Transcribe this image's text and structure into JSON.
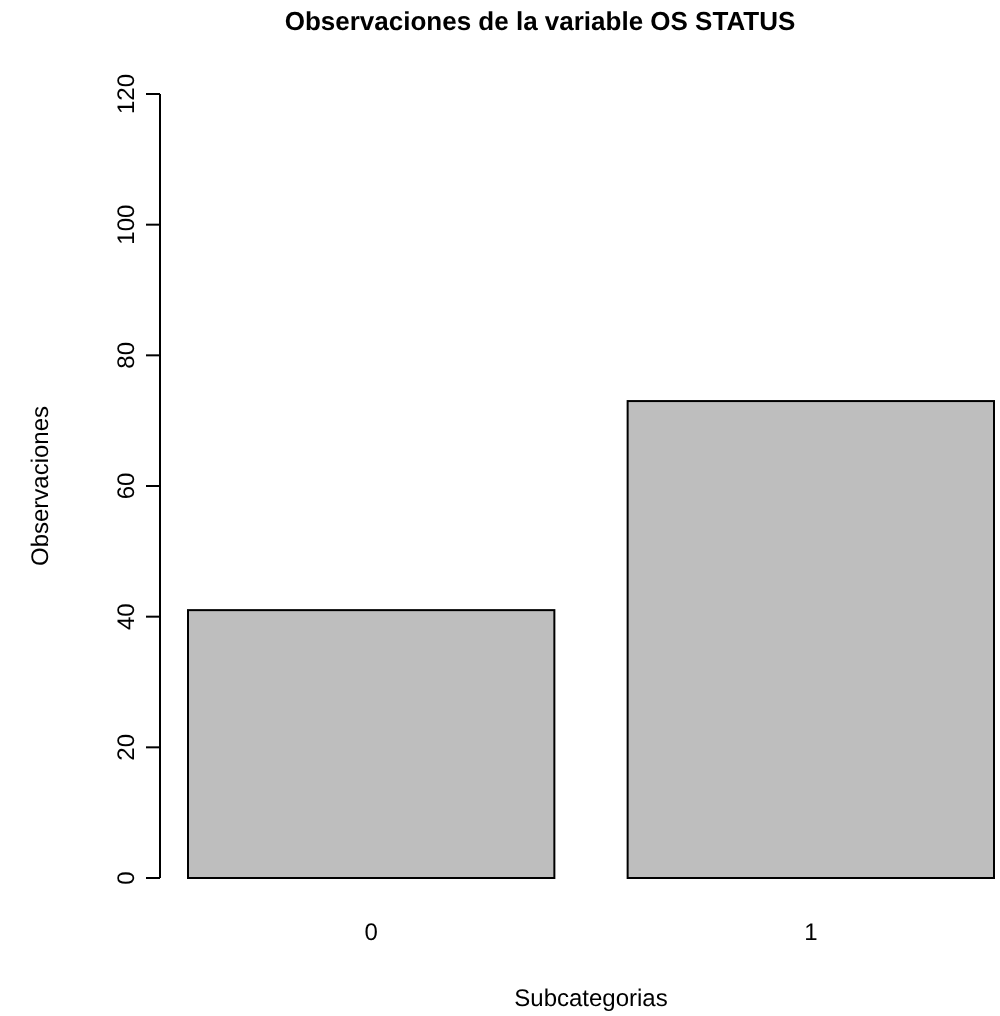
{
  "chart_data": {
    "type": "bar",
    "title": "Observaciones de la variable OS STATUS",
    "xlabel": "Subcategorias",
    "ylabel": "Observaciones",
    "categories": [
      "0",
      "1"
    ],
    "values": [
      41,
      73
    ],
    "color": "#bebebe",
    "ylim": [
      0,
      120
    ],
    "yticks": [
      0,
      20,
      40,
      60,
      80,
      100,
      120
    ],
    "grid": false
  }
}
